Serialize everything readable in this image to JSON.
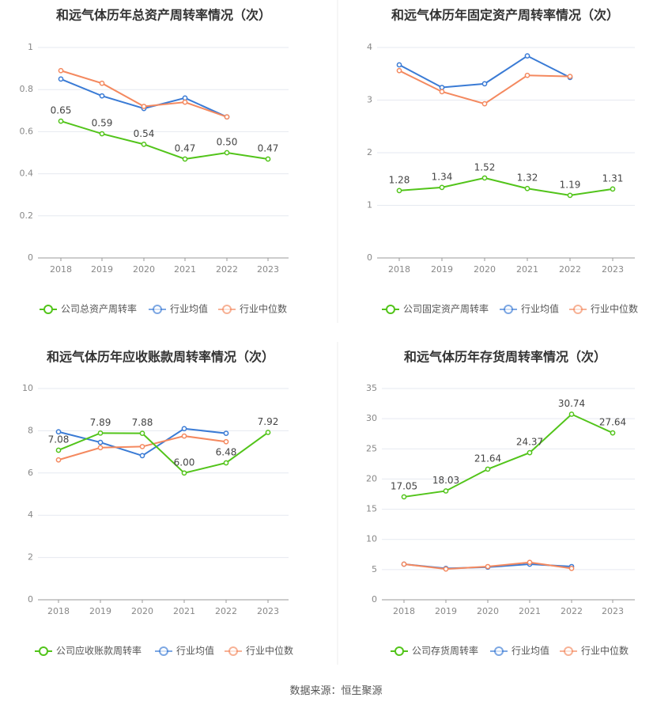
{
  "footer": {
    "source": "数据来源：恒生聚源"
  },
  "colors": {
    "company": "#52c41a",
    "avg": "#3a7bd5",
    "median": "#f4895f",
    "grid": "#e6e9f0",
    "axis": "#9a9a9a",
    "tick_text": "#888888",
    "title": "#333333",
    "divider": "#eeeeee"
  },
  "chart_data": [
    {
      "type": "line",
      "title": "和远气体历年总资产周转率情况（次）",
      "categories": [
        "2018",
        "2019",
        "2020",
        "2021",
        "2022",
        "2023"
      ],
      "ylim": [
        0,
        1
      ],
      "yticks": [
        "0",
        "0.2",
        "0.4",
        "0.6",
        "0.8",
        "1"
      ],
      "grid": true,
      "legend_position": "bottom",
      "series": [
        {
          "name": "公司总资产周转率",
          "role": "company",
          "values": [
            0.65,
            0.59,
            0.54,
            0.47,
            0.5,
            0.47
          ],
          "labels": [
            "0.65",
            "0.59",
            "0.54",
            "0.47",
            "0.50",
            "0.47"
          ]
        },
        {
          "name": "行业均值",
          "role": "avg",
          "values": [
            0.85,
            0.77,
            0.71,
            0.76,
            0.67,
            null
          ]
        },
        {
          "name": "行业中位数",
          "role": "median",
          "values": [
            0.89,
            0.83,
            0.72,
            0.74,
            0.67,
            null
          ]
        }
      ]
    },
    {
      "type": "line",
      "title": "和远气体历年固定资产周转率情况（次）",
      "categories": [
        "2018",
        "2019",
        "2020",
        "2021",
        "2022",
        "2023"
      ],
      "ylim": [
        0,
        4
      ],
      "yticks": [
        "0",
        "1",
        "2",
        "3",
        "4"
      ],
      "grid": true,
      "legend_position": "bottom",
      "series": [
        {
          "name": "公司固定资产周转率",
          "role": "company",
          "values": [
            1.28,
            1.34,
            1.52,
            1.32,
            1.19,
            1.31
          ],
          "labels": [
            "1.28",
            "1.34",
            "1.52",
            "1.32",
            "1.19",
            "1.31"
          ]
        },
        {
          "name": "行业均值",
          "role": "avg",
          "values": [
            3.67,
            3.24,
            3.31,
            3.84,
            3.43,
            null
          ]
        },
        {
          "name": "行业中位数",
          "role": "median",
          "values": [
            3.56,
            3.16,
            2.93,
            3.47,
            3.45,
            null
          ]
        }
      ]
    },
    {
      "type": "line",
      "title": "和远气体历年应收账款周转率情况（次）",
      "categories": [
        "2018",
        "2019",
        "2020",
        "2021",
        "2022",
        "2023"
      ],
      "ylim": [
        0,
        10
      ],
      "yticks": [
        "0",
        "2",
        "4",
        "6",
        "8",
        "10"
      ],
      "grid": true,
      "legend_position": "bottom",
      "series": [
        {
          "name": "公司应收账款周转率",
          "role": "company",
          "values": [
            7.08,
            7.89,
            7.88,
            6.0,
            6.48,
            7.92
          ],
          "labels": [
            "7.08",
            "7.89",
            "7.88",
            "6.00",
            "6.48",
            "7.92"
          ]
        },
        {
          "name": "行业均值",
          "role": "avg",
          "values": [
            7.95,
            7.45,
            6.82,
            8.1,
            7.88,
            null
          ]
        },
        {
          "name": "行业中位数",
          "role": "median",
          "values": [
            6.62,
            7.2,
            7.25,
            7.75,
            7.48,
            null
          ]
        }
      ]
    },
    {
      "type": "line",
      "title": "和远气体历年存货周转率情况（次）",
      "categories": [
        "2018",
        "2019",
        "2020",
        "2021",
        "2022",
        "2023"
      ],
      "ylim": [
        0,
        35
      ],
      "yticks": [
        "0",
        "5",
        "10",
        "15",
        "20",
        "25",
        "30",
        "35"
      ],
      "grid": true,
      "legend_position": "bottom",
      "series": [
        {
          "name": "公司存货周转率",
          "role": "company",
          "values": [
            17.05,
            18.03,
            21.64,
            24.37,
            30.74,
            27.64
          ],
          "labels": [
            "17.05",
            "18.03",
            "21.64",
            "24.37",
            "30.74",
            "27.64"
          ]
        },
        {
          "name": "行业均值",
          "role": "avg",
          "values": [
            5.9,
            5.2,
            5.4,
            5.9,
            5.5,
            null
          ]
        },
        {
          "name": "行业中位数",
          "role": "median",
          "values": [
            5.9,
            5.1,
            5.5,
            6.2,
            5.2,
            null
          ]
        }
      ]
    }
  ]
}
